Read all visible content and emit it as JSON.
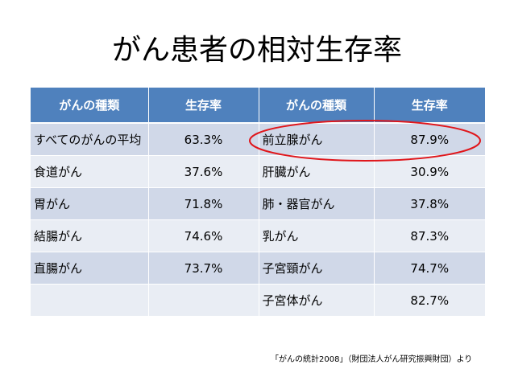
{
  "title": "がん患者の相対生存率",
  "table": {
    "headers": [
      "がんの種類",
      "生存率",
      "がんの種類",
      "生存率"
    ],
    "rows": [
      [
        "すべてのがんの平均",
        "63.3%",
        "前立腺がん",
        "87.9%"
      ],
      [
        "食道がん",
        "37.6%",
        "肝臓がん",
        "30.9%"
      ],
      [
        "胃がん",
        "71.8%",
        "肺・器官がん",
        "37.8%"
      ],
      [
        "結腸がん",
        "74.6%",
        "乳がん",
        "87.3%"
      ],
      [
        "直腸がん",
        "73.7%",
        "子宮頸がん",
        "74.7%"
      ],
      [
        "",
        "",
        "子宮体がん",
        "82.7%"
      ]
    ]
  },
  "source": "「がんの統計2008」（財団法人がん研究振興財団）より",
  "colors": {
    "header_bg": "#4f81bd",
    "row_odd": "#d0d8e8",
    "row_even": "#e9edf4",
    "highlight_ellipse": "#e0161b"
  }
}
